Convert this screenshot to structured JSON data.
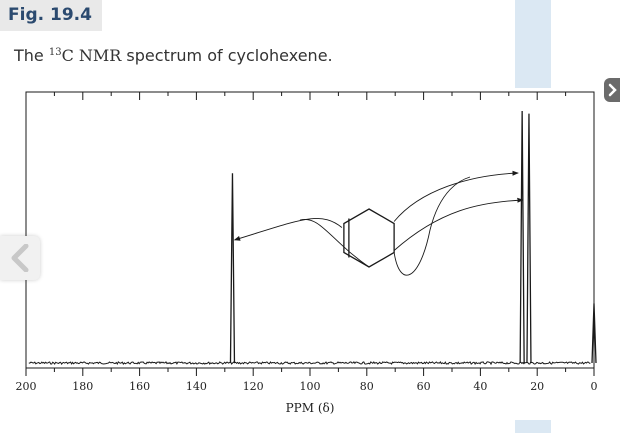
{
  "figure": {
    "label": "Fig. 19.4",
    "caption_prefix": "The ",
    "caption_isotope": "13",
    "caption_nmr": "C NMR",
    "caption_suffix": " spectrum of cyclohexene."
  },
  "navigation": {
    "prev_icon": "chevron-left-icon",
    "next_icon": "chevron-right-icon"
  },
  "chart_data": {
    "type": "line",
    "title": "",
    "xlabel": "PPM (δ)",
    "ylabel": "",
    "xlim": [
      200,
      0
    ],
    "ticks": [
      200,
      180,
      160,
      140,
      120,
      100,
      80,
      60,
      40,
      20,
      0
    ],
    "grid": false,
    "peaks": [
      {
        "ppm": 127.3,
        "height": 0.7
      },
      {
        "ppm": 25.3,
        "height": 0.93
      },
      {
        "ppm": 22.9,
        "height": 0.92
      },
      {
        "ppm": 0,
        "height": 0.22
      }
    ],
    "structure": "cyclohexene",
    "line_color": "#1a1a1a"
  }
}
